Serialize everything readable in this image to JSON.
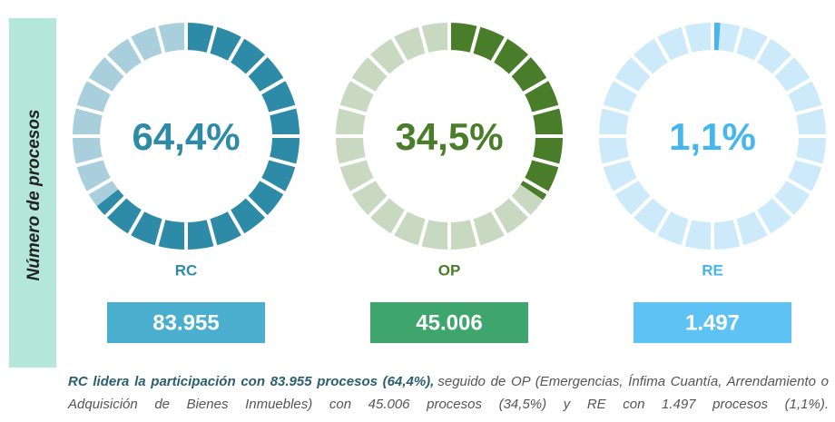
{
  "side_label": "Número de procesos",
  "chart_data": [
    {
      "type": "donut",
      "name": "RC",
      "values": [
        64.4
      ],
      "value_labels": [
        "64,4%"
      ],
      "count_label": "83.955",
      "color": "#2e8ba8",
      "track_color": "#a9cfdc",
      "box_color": "#4aafcf"
    },
    {
      "type": "donut",
      "name": "OP",
      "values": [
        34.5
      ],
      "value_labels": [
        "34,5%"
      ],
      "count_label": "45.006",
      "color": "#4a7d2a",
      "track_color": "#c9d8c0",
      "box_color": "#3ea56c"
    },
    {
      "type": "donut",
      "name": "RE",
      "values": [
        1.1
      ],
      "value_labels": [
        "1,1%"
      ],
      "count_label": "1.497",
      "color": "#45b6ef",
      "track_color": "#cdeafb",
      "box_color": "#5ec3f4"
    }
  ],
  "caption_bold": "RC lidera la participación con 83.955 procesos (64,4%),",
  "caption_rest": "seguido de OP (Emergencias, Ínfima Cuantía, Arrendamiento o Adquisición de Bienes Inmuebles) con 45.006 procesos (34,5%) y RE con 1.497 procesos (1,1%)."
}
